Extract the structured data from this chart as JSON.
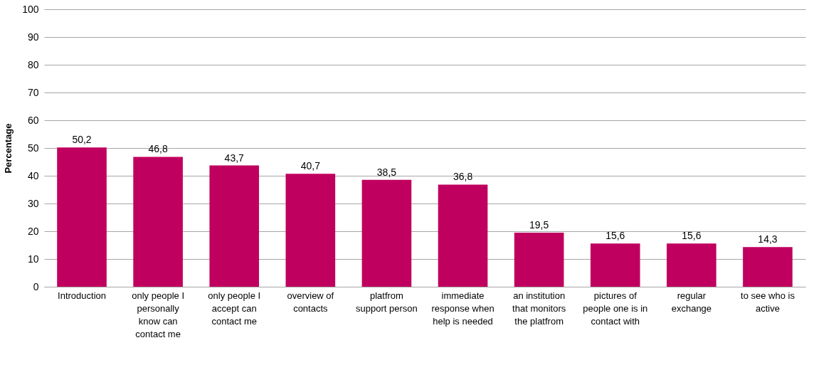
{
  "chart_data": {
    "type": "bar",
    "ylabel": "Percentage",
    "categories": [
      "Introduction",
      "only people I personally know can contact me",
      "only people I accept can contact me",
      "overview of contacts",
      "platfrom support person",
      "immediate response when help is needed",
      "an institution that monitors the platfrom",
      "pictures of people one is in contact with",
      "regular exchange",
      "to see who is active"
    ],
    "values": [
      50.2,
      46.8,
      43.7,
      40.7,
      38.5,
      36.8,
      19.5,
      15.6,
      15.6,
      14.3
    ],
    "value_labels": [
      "50,2",
      "46,8",
      "43,7",
      "40,7",
      "38,5",
      "36,8",
      "19,5",
      "15,6",
      "15,6",
      "14,3"
    ],
    "color": "#c0005f",
    "ylim": [
      0,
      100
    ],
    "yticks": [
      0,
      10,
      20,
      30,
      40,
      50,
      60,
      70,
      80,
      90,
      100
    ],
    "grid": "y"
  }
}
